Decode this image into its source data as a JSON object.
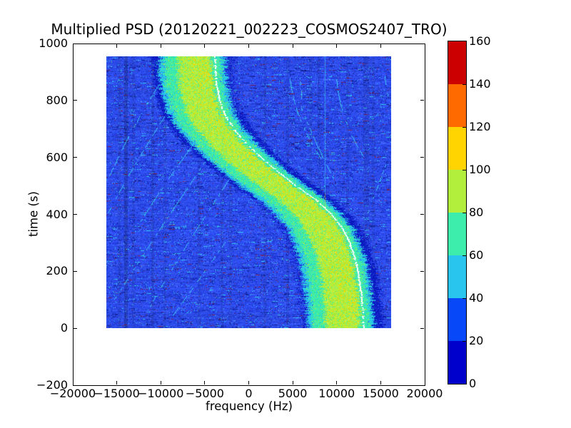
{
  "chart_data": {
    "type": "heatmap",
    "title": "Multiplied PSD (20120221_002223_COSMOS2407_TRO)",
    "xlabel": "frequency (Hz)",
    "ylabel": "time (s)",
    "xlim": [
      -20000,
      20000
    ],
    "ylim": [
      -200,
      1000
    ],
    "xticks": [
      -20000,
      -15000,
      -10000,
      -5000,
      0,
      5000,
      10000,
      15000,
      20000
    ],
    "yticks": [
      -200,
      0,
      200,
      400,
      600,
      800,
      1000
    ],
    "grid": false,
    "colorbar": {
      "position": "right",
      "ticks": [
        0,
        20,
        40,
        60,
        80,
        100,
        120,
        140,
        160
      ],
      "segment_colors_low_to_high": [
        "#0000cc",
        "#0748f8",
        "#29c5ee",
        "#3dedab",
        "#b2ef3c",
        "#ffd400",
        "#ff6a00",
        "#cc0000"
      ]
    },
    "data_extent": {
      "freq_hz": [
        -16200,
        16200
      ],
      "time_s": [
        0,
        955
      ]
    },
    "background_psd_level_range": [
      20,
      40
    ],
    "doppler_track_white_line": [
      [
        0,
        13100
      ],
      [
        50,
        13010
      ],
      [
        100,
        12880
      ],
      [
        150,
        12690
      ],
      [
        200,
        12420
      ],
      [
        250,
        12050
      ],
      [
        300,
        11500
      ],
      [
        350,
        10700
      ],
      [
        400,
        9450
      ],
      [
        450,
        7700
      ],
      [
        500,
        5400
      ],
      [
        550,
        3300
      ],
      [
        600,
        1400
      ],
      [
        650,
        -300
      ],
      [
        700,
        -1700
      ],
      [
        750,
        -2700
      ],
      [
        800,
        -3300
      ],
      [
        850,
        -3620
      ],
      [
        900,
        -3760
      ],
      [
        955,
        -3830
      ]
    ],
    "signal_band": {
      "offsets_hz": [
        -7100,
        -6400,
        -5800,
        -4300,
        -400,
        700,
        1200,
        2100
      ],
      "zone_levels": {
        "shadow": [
          0,
          20
        ],
        "fringe": [
          40,
          60
        ],
        "inner": [
          60,
          80
        ],
        "core": [
          80,
          100
        ],
        "core_speckles": [
          100,
          120
        ]
      },
      "zone_colors": {
        "shadow": "#0a18c0",
        "shadow2": "#1c34d6",
        "fringe": "#29c5ee",
        "fringe2": "#18b5e8",
        "inner": "#3dedab",
        "inner2": "#2fd99c",
        "core": "#b2ef3c",
        "coreL": "#c4f455",
        "coreD": "#9fe52f",
        "gold": "#ffd400",
        "bgblue": "#2e5af0",
        "white_line": "#ffffff",
        "arc": "#3ecdf2"
      }
    },
    "side_arcs": [
      [
        [
          100,
          -15300
        ],
        [
          400,
          -9000
        ],
        [
          625,
          -4100
        ]
      ],
      [
        [
          325,
          -13300
        ],
        [
          575,
          -8000
        ],
        [
          725,
          -4400
        ]
      ],
      [
        [
          400,
          -16100
        ],
        [
          700,
          -10500
        ],
        [
          850,
          -7300
        ]
      ],
      [
        [
          75,
          -11300
        ],
        [
          325,
          -6400
        ],
        [
          530,
          -2100
        ]
      ],
      [
        [
          0,
          -9700
        ],
        [
          175,
          -5600
        ],
        [
          310,
          -2500
        ]
      ],
      [
        [
          525,
          -16000
        ],
        [
          750,
          -12300
        ],
        [
          900,
          -9300
        ]
      ],
      [
        [
          12,
          7380
        ],
        [
          200,
          10620
        ],
        [
          325,
          12650
        ]
      ],
      [
        [
          400,
          13450
        ],
        [
          510,
          14800
        ],
        [
          600,
          15900
        ]
      ],
      [
        [
          595,
          8200
        ],
        [
          762,
          5500
        ],
        [
          878,
          4650
        ]
      ],
      [
        [
          600,
          13050
        ],
        [
          790,
          10400
        ],
        [
          885,
          9950
        ]
      ],
      [
        [
          795,
          15950
        ],
        [
          840,
          15650
        ],
        [
          885,
          15450
        ]
      ],
      [
        [
          805,
          6000
        ],
        [
          845,
          5900
        ],
        [
          880,
          5800
        ]
      ],
      [
        [
          520,
          9700
        ],
        [
          660,
          7500
        ],
        [
          775,
          5950
        ]
      ]
    ],
    "carrier_line": {
      "freq_hz": 8700,
      "time_range_s": [
        380,
        955
      ]
    },
    "dark_columns_hz": [
      [
        -14150,
        -13800
      ],
      [
        -11050,
        -10780
      ]
    ],
    "noise": {
      "background": [
        [
          "#2e4ff0",
          0.46
        ],
        [
          "#2743e4",
          0.18
        ],
        [
          "#3a5bf7",
          0.12
        ],
        [
          "#1d33d2",
          0.08
        ],
        [
          "#15279f",
          0.055
        ],
        [
          "#4e6efa",
          0.03
        ],
        [
          "#0a1a8c",
          0.015
        ],
        [
          "#35c8f0",
          0.025
        ],
        [
          "#7a2050",
          0.015
        ]
      ]
    }
  }
}
